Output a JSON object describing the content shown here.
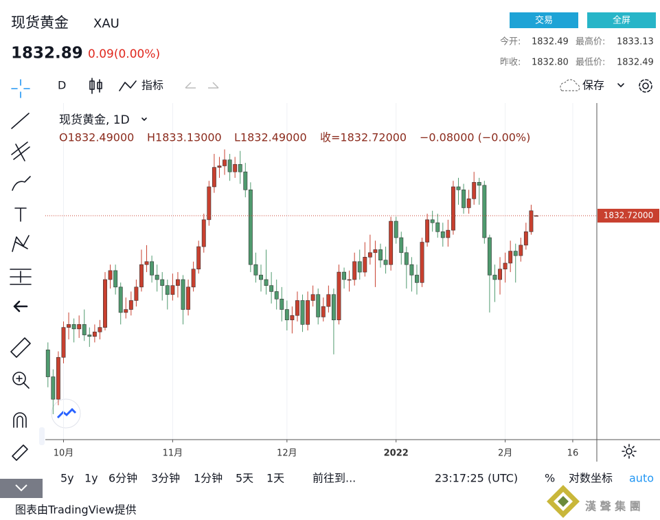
{
  "header": {
    "name": "现货黄金",
    "symbol": "XAU",
    "price": "1832.89",
    "change": "0.09(0.00%)",
    "buttons": [
      "交易",
      "全屏"
    ],
    "stats": [
      {
        "label": "今开:",
        "value": "1832.49"
      },
      {
        "label": "最高价:",
        "value": "1833.13"
      },
      {
        "label": "昨收:",
        "value": "1832.80"
      },
      {
        "label": "最低价:",
        "value": "1832.49"
      }
    ]
  },
  "toolbar": {
    "interval": "D",
    "indicators": "指标",
    "save": "保存"
  },
  "chart_data": {
    "type": "candlestick",
    "title": "现货黄金, 1D",
    "ohlc_legend": [
      "O1832.49000",
      "H1833.13000",
      "L1832.49000",
      "收=1832.72000",
      "−0.08000 (−0.00%)"
    ],
    "open": [
      1743,
      1725,
      1710,
      1738,
      1758,
      1760,
      1757,
      1760,
      1753,
      1752,
      1755,
      1758,
      1790,
      1796,
      1785,
      1768,
      1770,
      1776,
      1785,
      1800,
      1802,
      1793,
      1790,
      1786,
      1780,
      1786,
      1790,
      1770,
      1785,
      1797,
      1812,
      1830,
      1852,
      1865,
      1866,
      1870,
      1862,
      1867,
      1862,
      1850,
      1800,
      1793,
      1790,
      1786,
      1782,
      1777,
      1770,
      1763,
      1766,
      1776,
      1760,
      1776,
      1780,
      1765,
      1772,
      1780,
      1763,
      1795,
      1790,
      1790,
      1802,
      1795,
      1805,
      1808,
      1810,
      1803,
      1800,
      1829,
      1818,
      1808,
      1800,
      1793,
      1788,
      1815,
      1830,
      1828,
      1822,
      1818,
      1823,
      1852,
      1850,
      1838,
      1844,
      1855,
      1853,
      1818,
      1793,
      1790,
      1797,
      1801,
      1809,
      1806,
      1813,
      1822,
      1832.49
    ],
    "high": [
      1748,
      1730,
      1742,
      1762,
      1768,
      1764,
      1766,
      1770,
      1758,
      1760,
      1763,
      1795,
      1800,
      1800,
      1788,
      1778,
      1782,
      1790,
      1810,
      1813,
      1806,
      1800,
      1795,
      1790,
      1794,
      1795,
      1793,
      1790,
      1802,
      1816,
      1834,
      1856,
      1874,
      1872,
      1877,
      1874,
      1872,
      1876,
      1868,
      1855,
      1808,
      1800,
      1810,
      1795,
      1790,
      1785,
      1776,
      1772,
      1782,
      1780,
      1782,
      1786,
      1784,
      1778,
      1786,
      1784,
      1800,
      1798,
      1796,
      1808,
      1810,
      1815,
      1820,
      1816,
      1814,
      1812,
      1832,
      1832,
      1822,
      1812,
      1805,
      1800,
      1818,
      1834,
      1836,
      1834,
      1828,
      1830,
      1856,
      1858,
      1854,
      1850,
      1862,
      1858,
      1856,
      1820,
      1800,
      1805,
      1808,
      1816,
      1814,
      1818,
      1828,
      1840,
      1833.13
    ],
    "low": [
      1718,
      1700,
      1706,
      1734,
      1750,
      1748,
      1751,
      1749,
      1745,
      1748,
      1750,
      1756,
      1784,
      1780,
      1760,
      1764,
      1766,
      1772,
      1782,
      1795,
      1788,
      1782,
      1776,
      1770,
      1776,
      1778,
      1760,
      1766,
      1782,
      1794,
      1808,
      1826,
      1848,
      1858,
      1860,
      1856,
      1858,
      1854,
      1845,
      1795,
      1788,
      1782,
      1780,
      1774,
      1770,
      1762,
      1756,
      1754,
      1762,
      1755,
      1756,
      1772,
      1760,
      1762,
      1768,
      1740,
      1760,
      1784,
      1782,
      1786,
      1790,
      1792,
      1800,
      1785,
      1798,
      1794,
      1796,
      1814,
      1800,
      1784,
      1782,
      1780,
      1785,
      1812,
      1822,
      1818,
      1812,
      1812,
      1820,
      1840,
      1834,
      1834,
      1840,
      1840,
      1814,
      1768,
      1775,
      1780,
      1788,
      1795,
      1788,
      1802,
      1810,
      1820,
      1832.49
    ],
    "close": [
      1725,
      1710,
      1738,
      1758,
      1760,
      1757,
      1760,
      1753,
      1752,
      1755,
      1758,
      1790,
      1796,
      1785,
      1768,
      1770,
      1776,
      1785,
      1800,
      1802,
      1793,
      1790,
      1786,
      1780,
      1786,
      1790,
      1770,
      1785,
      1797,
      1812,
      1830,
      1852,
      1865,
      1866,
      1870,
      1862,
      1867,
      1862,
      1850,
      1800,
      1793,
      1790,
      1786,
      1782,
      1777,
      1770,
      1763,
      1766,
      1776,
      1760,
      1776,
      1780,
      1765,
      1772,
      1780,
      1763,
      1795,
      1790,
      1790,
      1802,
      1795,
      1805,
      1808,
      1810,
      1803,
      1800,
      1829,
      1818,
      1808,
      1800,
      1793,
      1788,
      1815,
      1830,
      1828,
      1822,
      1818,
      1823,
      1852,
      1850,
      1838,
      1844,
      1855,
      1853,
      1818,
      1793,
      1790,
      1797,
      1801,
      1809,
      1806,
      1813,
      1822,
      1836,
      1832.72
    ],
    "up_color": "#c8402f",
    "down_color": "#4f9a6e",
    "xlim": [
      -0.5,
      105.5
    ],
    "xticks": [
      {
        "value": 3,
        "label": "10月"
      },
      {
        "value": 24,
        "label": "11月"
      },
      {
        "value": 46,
        "label": "12月"
      },
      {
        "value": 67,
        "label": "2022"
      },
      {
        "value": 88,
        "label": "2月"
      },
      {
        "value": 101,
        "label": "16"
      }
    ],
    "ylim": [
      1683,
      1908
    ],
    "grid": true,
    "price_line": {
      "value": 1832.72,
      "label": "1832.72000"
    }
  },
  "bottom": {
    "ranges": [
      "5y",
      "1y",
      "6分钟",
      "3分钟",
      "1分钟",
      "5天",
      "1天"
    ],
    "goto": "前往到...",
    "time": "23:17:25 (UTC)",
    "percent": "%",
    "log": "对数坐标",
    "auto": "auto"
  },
  "footer": "图表由TradingView提供",
  "watermark": "漢 聲 集 團"
}
